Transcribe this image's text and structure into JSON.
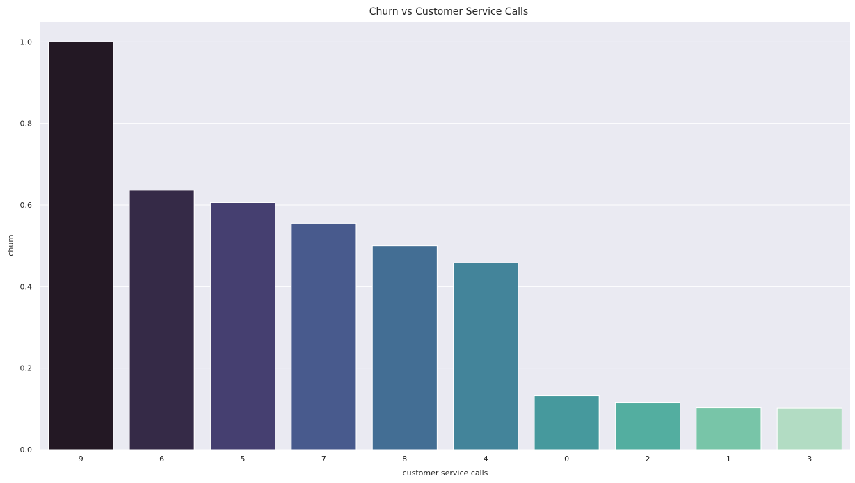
{
  "chart_data": {
    "type": "bar",
    "title": "Churn vs Customer Service Calls",
    "xlabel": "customer service calls",
    "ylabel": "churn",
    "categories": [
      "9",
      "6",
      "5",
      "7",
      "8",
      "4",
      "0",
      "2",
      "1",
      "3"
    ],
    "values": [
      1.0,
      0.636,
      0.606,
      0.555,
      0.5,
      0.458,
      0.132,
      0.115,
      0.103,
      0.102
    ],
    "colors": [
      "#231824",
      "#352A47",
      "#453F70",
      "#485A8D",
      "#436E94",
      "#43849A",
      "#46999D",
      "#53AEA0",
      "#78C5A8",
      "#B2DCC3"
    ],
    "ylim": [
      0,
      1.05
    ],
    "yticks": [
      "0.0",
      "0.2",
      "0.4",
      "0.6",
      "0.8",
      "1.0"
    ],
    "grid": true,
    "background": "#EAEAF2",
    "grid_color": "#FFFFFF"
  }
}
